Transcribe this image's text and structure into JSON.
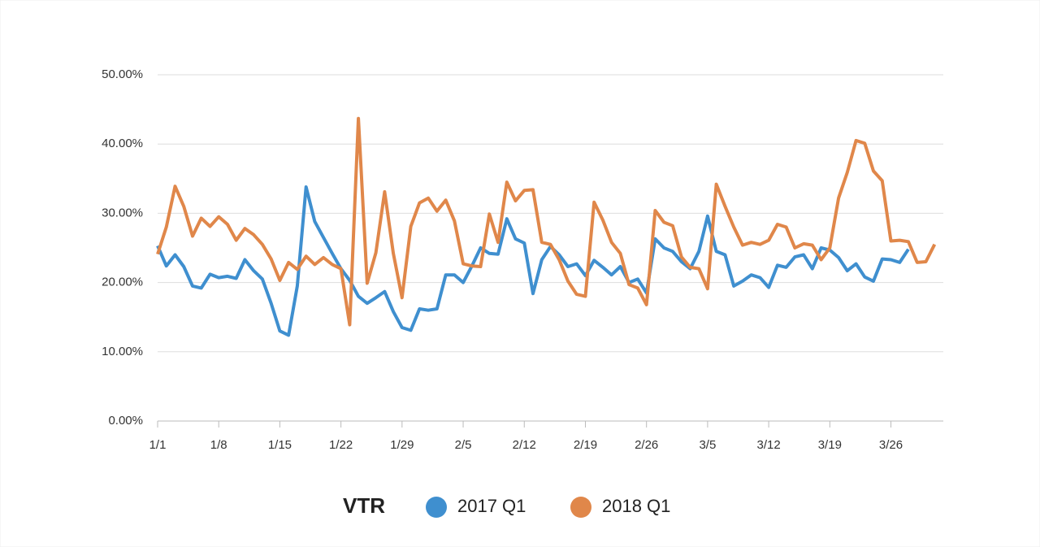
{
  "chart_data": {
    "type": "line",
    "categories": [
      "1/1",
      null,
      null,
      null,
      null,
      null,
      null,
      "1/8",
      null,
      null,
      null,
      null,
      null,
      null,
      "1/15",
      null,
      null,
      null,
      null,
      null,
      null,
      "1/22",
      null,
      null,
      null,
      null,
      null,
      null,
      "1/29",
      null,
      null,
      null,
      null,
      null,
      null,
      "2/5",
      null,
      null,
      null,
      null,
      null,
      null,
      "2/12",
      null,
      null,
      null,
      null,
      null,
      null,
      "2/19",
      null,
      null,
      null,
      null,
      null,
      null,
      "2/26",
      null,
      null,
      null,
      null,
      null,
      null,
      "3/5",
      null,
      null,
      null,
      null,
      null,
      null,
      "3/12",
      null,
      null,
      null,
      null,
      null,
      null,
      "3/19",
      null,
      null,
      null,
      null,
      null,
      null,
      "3/26",
      null,
      null,
      null,
      null,
      null
    ],
    "series": [
      {
        "name": "2017 Q1",
        "color": "#3f8fcf",
        "values": [
          25.3,
          22.4,
          24.0,
          22.3,
          19.5,
          19.2,
          21.2,
          20.7,
          20.9,
          20.6,
          23.3,
          21.7,
          20.5,
          17.0,
          13.0,
          12.4,
          19.5,
          33.8,
          28.8,
          26.5,
          24.2,
          22.0,
          20.3,
          18.0,
          17.0,
          17.8,
          18.7,
          15.8,
          13.5,
          13.1,
          16.2,
          16.0,
          16.2,
          21.1,
          21.1,
          20.0,
          22.4,
          25.0,
          24.2,
          24.1,
          29.2,
          26.3,
          25.7,
          18.4,
          23.3,
          25.2,
          24.0,
          22.3,
          22.7,
          21.0,
          23.2,
          22.2,
          21.1,
          22.3,
          20.0,
          20.5,
          18.5,
          26.3,
          25.0,
          24.5,
          23.0,
          22.0,
          24.5,
          29.6,
          24.5,
          24.0,
          19.5,
          20.2,
          21.1,
          20.7,
          19.3,
          22.5,
          22.2,
          23.7,
          24.0,
          22.0,
          25.0,
          24.7,
          23.6,
          21.7,
          22.7,
          20.8,
          20.2,
          23.4,
          23.3,
          22.9,
          24.8,
          null,
          null,
          null
        ]
      },
      {
        "name": "2018 Q1",
        "color": "#e0874a",
        "values": [
          24.1,
          28.0,
          33.9,
          31.0,
          26.7,
          29.3,
          28.1,
          29.5,
          28.4,
          26.1,
          27.8,
          26.9,
          25.5,
          23.4,
          20.3,
          22.9,
          21.9,
          23.8,
          22.6,
          23.6,
          22.6,
          22.0,
          13.9,
          43.7,
          19.9,
          24.3,
          33.1,
          24.2,
          17.8,
          28.1,
          31.5,
          32.2,
          30.3,
          31.9,
          28.9,
          22.7,
          22.4,
          22.3,
          29.9,
          25.8,
          34.5,
          31.8,
          33.3,
          33.4,
          25.8,
          25.5,
          23.3,
          20.2,
          18.3,
          18.0,
          31.6,
          29.0,
          25.8,
          24.2,
          19.7,
          19.2,
          16.8,
          30.4,
          28.7,
          28.2,
          23.7,
          22.2,
          22.0,
          19.1,
          34.2,
          31.0,
          28.0,
          25.4,
          25.8,
          25.5,
          26.1,
          28.4,
          28.0,
          25.0,
          25.6,
          25.4,
          23.3,
          25.0,
          32.2,
          35.9,
          40.5,
          40.1,
          36.1,
          34.7,
          26.0,
          26.1,
          25.9,
          22.9,
          23.0,
          25.5
        ]
      }
    ],
    "ylim": [
      0,
      50
    ],
    "yticks": [
      {
        "value": 0,
        "label": "0.00%"
      },
      {
        "value": 10,
        "label": "10.00%"
      },
      {
        "value": 20,
        "label": "20.00%"
      },
      {
        "value": 30,
        "label": "30.00%"
      },
      {
        "value": 40,
        "label": "40.00%"
      },
      {
        "value": 50,
        "label": "50.00%"
      }
    ],
    "grid": true,
    "legend_title": "VTR",
    "legend_position": "bottom"
  }
}
